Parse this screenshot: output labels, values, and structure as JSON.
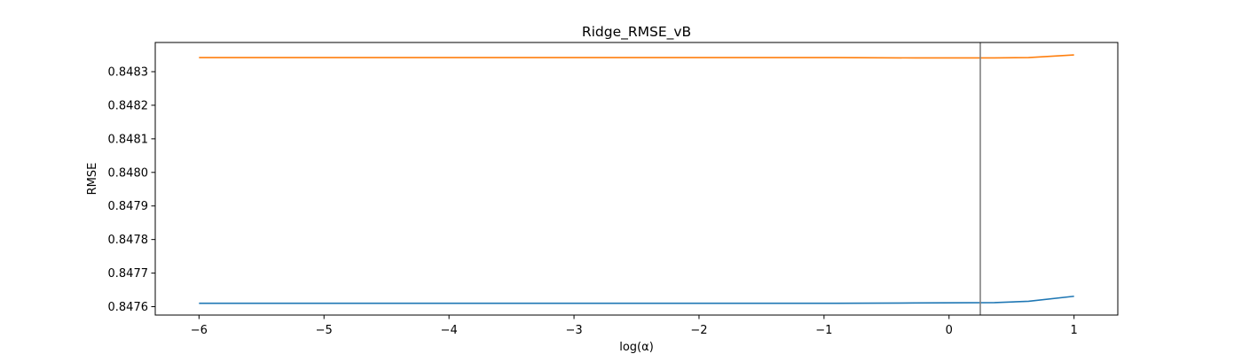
{
  "chart_data": {
    "type": "line",
    "title": "Ridge_RMSE_vB",
    "xlabel": "log(α)",
    "ylabel": "RMSE",
    "xlim": [
      -6.35,
      1.35
    ],
    "ylim": [
      0.847575,
      0.848387
    ],
    "xticks": [
      -6,
      -5,
      -4,
      -3,
      -2,
      -1,
      0,
      1
    ],
    "xtick_labels": [
      "−6",
      "−5",
      "−4",
      "−3",
      "−2",
      "−1",
      "0",
      "1"
    ],
    "yticks": [
      0.8476,
      0.8477,
      0.8478,
      0.8479,
      0.848,
      0.8481,
      0.8482,
      0.8483
    ],
    "ytick_labels": [
      "0.8476",
      "0.8477",
      "0.8478",
      "0.8479",
      "0.8480",
      "0.8481",
      "0.8482",
      "0.8483"
    ],
    "grid": false,
    "series": [
      {
        "color": "#1f77b4",
        "x": [
          -6,
          -5.364,
          -4.727,
          -4.091,
          -3.455,
          -2.818,
          -2.182,
          -1.545,
          -0.909,
          -0.273,
          0.364,
          0.636,
          1.0
        ],
        "y": [
          0.84761,
          0.84761,
          0.84761,
          0.84761,
          0.84761,
          0.84761,
          0.84761,
          0.84761,
          0.84761,
          0.847611,
          0.847612,
          0.847616,
          0.847631
        ]
      },
      {
        "color": "#ff7f0e",
        "x": [
          -6,
          -5.364,
          -4.727,
          -4.091,
          -3.455,
          -2.818,
          -2.182,
          -1.545,
          -0.909,
          -0.273,
          0.364,
          0.636,
          1.0
        ],
        "y": [
          0.848342,
          0.848342,
          0.848342,
          0.848342,
          0.848342,
          0.848342,
          0.848342,
          0.848342,
          0.848342,
          0.848341,
          0.848341,
          0.848342,
          0.84835
        ]
      }
    ],
    "vline": {
      "x": 0.25,
      "color": "#808080"
    }
  }
}
